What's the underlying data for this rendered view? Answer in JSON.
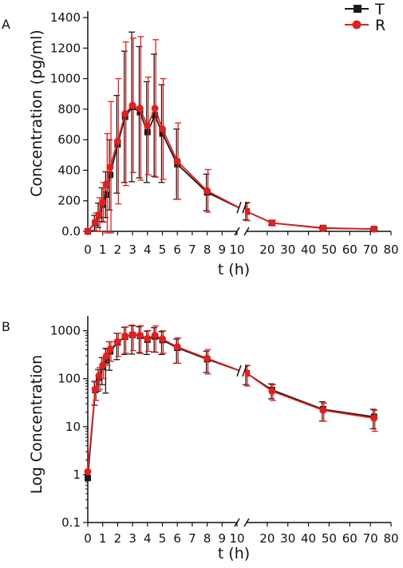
{
  "chart_data": [
    {
      "panel": "A",
      "type": "line",
      "xlabel": "t (h)",
      "ylabel": "Concentration (pg/ml)",
      "xlim": [
        0,
        80
      ],
      "ylim": [
        0,
        1400
      ],
      "x_break": [
        10,
        12
      ],
      "y_scale": "linear",
      "x_ticks": [
        "0",
        "1",
        "2",
        "3",
        "4",
        "5",
        "6",
        "7",
        "8",
        "9",
        "10",
        "20",
        "30",
        "40",
        "50",
        "60",
        "70",
        "80"
      ],
      "y_ticks": [
        "0.0",
        "200",
        "400",
        "600",
        "800",
        "1000",
        "1200",
        "1400"
      ],
      "legend": {
        "entries": [
          "T",
          "R"
        ],
        "placement": "top-right"
      },
      "colors": {
        "T": "#1a1a1a",
        "R": "#e02020"
      },
      "x": [
        0,
        0.5,
        0.75,
        1,
        1.25,
        1.5,
        2,
        2.5,
        3,
        3.5,
        4,
        4.5,
        5,
        6,
        8,
        12,
        24,
        48,
        72
      ],
      "series": [
        {
          "name": "T",
          "values": [
            0,
            55,
            105,
            175,
            240,
            370,
            570,
            750,
            815,
            780,
            650,
            760,
            640,
            440,
            255,
            130,
            55,
            22,
            15
          ],
          "errors": [
            0,
            50,
            80,
            110,
            150,
            230,
            320,
            430,
            490,
            430,
            330,
            400,
            320,
            230,
            120,
            55,
            15,
            8,
            6
          ]
        },
        {
          "name": "R",
          "values": [
            0,
            60,
            110,
            190,
            310,
            420,
            590,
            770,
            825,
            805,
            690,
            805,
            670,
            460,
            265,
            130,
            55,
            20,
            15
          ],
          "errors": [
            0,
            60,
            110,
            130,
            330,
            430,
            410,
            470,
            440,
            470,
            320,
            450,
            330,
            250,
            140,
            60,
            18,
            8,
            6
          ]
        }
      ]
    },
    {
      "panel": "B",
      "type": "line",
      "xlabel": "t (h)",
      "ylabel": "Log Concentration",
      "xlim": [
        0,
        80
      ],
      "ylim": [
        0.1,
        1500
      ],
      "x_break": [
        10,
        12
      ],
      "y_scale": "log",
      "x_ticks": [
        "0",
        "1",
        "2",
        "3",
        "4",
        "5",
        "6",
        "7",
        "8",
        "9",
        "10",
        "20",
        "30",
        "40",
        "50",
        "60",
        "70",
        "80"
      ],
      "y_ticks": [
        "0.1",
        "1",
        "10",
        "100",
        "1000"
      ],
      "colors": {
        "T": "#1a1a1a",
        "R": "#e02020"
      },
      "x": [
        0,
        0.5,
        0.75,
        1,
        1.25,
        1.5,
        2,
        2.5,
        3,
        3.5,
        4,
        4.5,
        5,
        6,
        8,
        12,
        24,
        48,
        72
      ],
      "series": [
        {
          "name": "T",
          "values": [
            0.85,
            58,
            105,
            175,
            240,
            370,
            570,
            750,
            815,
            780,
            650,
            760,
            640,
            440,
            255,
            130,
            58,
            23,
            16
          ],
          "errors": [
            0,
            30,
            50,
            100,
            190,
            220,
            320,
            430,
            490,
            430,
            330,
            400,
            320,
            230,
            120,
            55,
            20,
            10,
            7
          ]
        },
        {
          "name": "R",
          "values": [
            1.15,
            60,
            115,
            190,
            300,
            410,
            590,
            770,
            825,
            805,
            690,
            805,
            670,
            460,
            265,
            130,
            55,
            22,
            15
          ],
          "errors": [
            0,
            25,
            55,
            90,
            110,
            180,
            300,
            430,
            440,
            470,
            320,
            450,
            330,
            250,
            140,
            60,
            20,
            9,
            7
          ]
        }
      ]
    }
  ]
}
